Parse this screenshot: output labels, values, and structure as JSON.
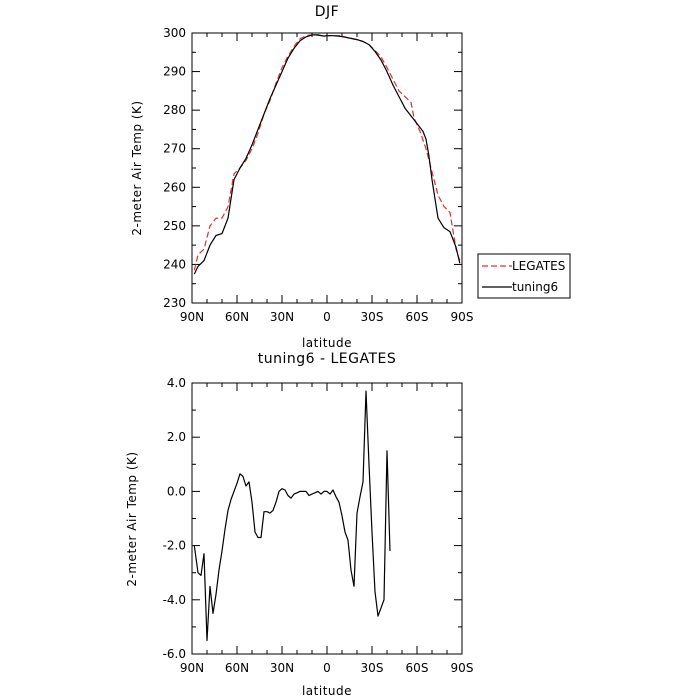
{
  "chart_data": [
    {
      "type": "line",
      "title": "DJF",
      "xlabel": "latitude",
      "ylabel": "2-meter Air Temp (K)",
      "xlim": [
        -90,
        90
      ],
      "ylim": [
        230,
        300
      ],
      "x_ticks": [
        -90,
        -60,
        -30,
        0,
        30,
        60,
        90
      ],
      "x_tick_labels": [
        "90N",
        "60N",
        "30N",
        "0",
        "30S",
        "60S",
        "90S"
      ],
      "y_ticks": [
        230,
        240,
        250,
        260,
        270,
        280,
        290,
        300
      ],
      "y_tick_labels": [
        "230",
        "240",
        "250",
        "260",
        "270",
        "280",
        "290",
        "300"
      ],
      "grid": false,
      "legend": {
        "placement": "outside-right",
        "entries": [
          {
            "label": "LEGATES",
            "color": "#e03030",
            "dash": "dashed"
          },
          {
            "label": "tuning6",
            "color": "#000000",
            "dash": "solid"
          }
        ]
      },
      "series": [
        {
          "name": "LEGATES",
          "color": "#e03030",
          "dash": "dashed",
          "points": [
            [
              -88.5,
              238.5
            ],
            [
              -86,
              242.5
            ],
            [
              -82,
              244
            ],
            [
              -78,
              250
            ],
            [
              -74,
              252
            ],
            [
              -70,
              252
            ],
            [
              -66,
              255
            ],
            [
              -62,
              263.5
            ],
            [
              -58,
              265
            ],
            [
              -54,
              267
            ],
            [
              -50,
              270
            ],
            [
              -46,
              274
            ],
            [
              -42,
              279
            ],
            [
              -38,
              282.5
            ],
            [
              -34,
              287
            ],
            [
              -30,
              291
            ],
            [
              -26,
              294
            ],
            [
              -22,
              296.5
            ],
            [
              -18,
              298.5
            ],
            [
              -14,
              299.3
            ],
            [
              -10,
              299.5
            ],
            [
              -6,
              299.4
            ],
            [
              -2,
              299.2
            ],
            [
              0,
              299.3
            ],
            [
              4,
              299.3
            ],
            [
              8,
              299.3
            ],
            [
              12,
              299
            ],
            [
              16,
              298.6
            ],
            [
              20,
              298.3
            ],
            [
              24,
              297.8
            ],
            [
              28,
              297
            ],
            [
              32,
              295.5
            ],
            [
              36,
              293.8
            ],
            [
              40,
              291
            ],
            [
              44,
              288
            ],
            [
              48,
              285
            ],
            [
              52,
              283.5
            ],
            [
              56,
              282
            ],
            [
              58,
              278
            ],
            [
              62,
              274.5
            ],
            [
              66,
              270
            ],
            [
              70,
              264
            ],
            [
              74,
              258
            ],
            [
              78,
              255
            ],
            [
              82,
              253.5
            ],
            [
              86,
              244
            ],
            [
              88.5,
              241
            ]
          ]
        },
        {
          "name": "tuning6",
          "color": "#000000",
          "dash": "solid",
          "points": [
            [
              -88.5,
              237.5
            ],
            [
              -86,
              239.5
            ],
            [
              -82,
              241
            ],
            [
              -78,
              245
            ],
            [
              -74,
              247.5
            ],
            [
              -70,
              248
            ],
            [
              -66,
              252
            ],
            [
              -62,
              262
            ],
            [
              -58,
              265
            ],
            [
              -54,
              267.5
            ],
            [
              -50,
              271
            ],
            [
              -46,
              275
            ],
            [
              -42,
              279
            ],
            [
              -38,
              283
            ],
            [
              -34,
              286.5
            ],
            [
              -30,
              290
            ],
            [
              -26,
              293.5
            ],
            [
              -22,
              296
            ],
            [
              -18,
              298
            ],
            [
              -14,
              299
            ],
            [
              -10,
              299.5
            ],
            [
              -6,
              299.5
            ],
            [
              -2,
              299.2
            ],
            [
              0,
              299.3
            ],
            [
              4,
              299.3
            ],
            [
              8,
              299.2
            ],
            [
              12,
              298.9
            ],
            [
              16,
              298.6
            ],
            [
              20,
              298.3
            ],
            [
              24,
              297.8
            ],
            [
              28,
              297
            ],
            [
              32,
              295.2
            ],
            [
              36,
              293
            ],
            [
              40,
              290
            ],
            [
              44,
              286.5
            ],
            [
              48,
              283.5
            ],
            [
              52,
              280.5
            ],
            [
              56,
              278.5
            ],
            [
              60,
              276.5
            ],
            [
              64,
              274.5
            ],
            [
              66,
              272.5
            ],
            [
              68,
              268
            ],
            [
              70,
              262
            ],
            [
              74,
              252
            ],
            [
              78,
              249.5
            ],
            [
              82,
              248.5
            ],
            [
              86,
              244.5
            ],
            [
              88.5,
              240.3
            ]
          ]
        }
      ]
    },
    {
      "type": "line",
      "title": "tuning6 - LEGATES",
      "xlabel": "latitude",
      "ylabel": "2-meter Air Temp (K)",
      "xlim": [
        -90,
        90
      ],
      "ylim": [
        -6.0,
        4.0
      ],
      "x_ticks": [
        -90,
        -60,
        -30,
        0,
        30,
        60,
        90
      ],
      "x_tick_labels": [
        "90N",
        "60N",
        "30N",
        "0",
        "30S",
        "60S",
        "90S"
      ],
      "y_ticks": [
        -6,
        -4,
        -2,
        0,
        2,
        4
      ],
      "y_tick_labels": [
        "-6.0",
        "-4.0",
        "-2.0",
        "0.0",
        "2.0",
        "4.0"
      ],
      "grid": false,
      "series": [
        {
          "color": "#000000",
          "dash": "solid",
          "points": [
            [
              -88.5,
              -2.0
            ],
            [
              -86,
              -3.0
            ],
            [
              -84,
              -3.1
            ],
            [
              -82,
              -2.3
            ],
            [
              -80,
              -5.5
            ],
            [
              -78,
              -3.5
            ],
            [
              -76,
              -4.5
            ],
            [
              -74,
              -3.8
            ],
            [
              -72,
              -2.9
            ],
            [
              -70,
              -2.2
            ],
            [
              -68,
              -1.4
            ],
            [
              -66,
              -0.7
            ],
            [
              -64,
              -0.3
            ],
            [
              -62,
              0.0
            ],
            [
              -60,
              0.3
            ],
            [
              -58,
              0.65
            ],
            [
              -56,
              0.55
            ],
            [
              -54,
              0.2
            ],
            [
              -52,
              0.35
            ],
            [
              -50,
              -0.4
            ],
            [
              -48,
              -1.5
            ],
            [
              -46,
              -1.7
            ],
            [
              -44,
              -1.7
            ],
            [
              -42,
              -0.75
            ],
            [
              -40,
              -0.75
            ],
            [
              -38,
              -0.8
            ],
            [
              -36,
              -0.7
            ],
            [
              -34,
              -0.4
            ],
            [
              -32,
              0.0
            ],
            [
              -30,
              0.1
            ],
            [
              -28,
              0.05
            ],
            [
              -26,
              -0.15
            ],
            [
              -24,
              -0.25
            ],
            [
              -22,
              -0.1
            ],
            [
              -20,
              -0.05
            ],
            [
              -18,
              0.0
            ],
            [
              -16,
              0.0
            ],
            [
              -14,
              0.0
            ],
            [
              -12,
              -0.15
            ],
            [
              -10,
              -0.1
            ],
            [
              -8,
              -0.05
            ],
            [
              -6,
              0.0
            ],
            [
              -4,
              -0.1
            ],
            [
              -2,
              0.0
            ],
            [
              0,
              0.0
            ],
            [
              2,
              -0.1
            ],
            [
              4,
              0.05
            ],
            [
              6,
              -0.2
            ],
            [
              8,
              -0.4
            ],
            [
              10,
              -0.9
            ],
            [
              12,
              -1.5
            ],
            [
              14,
              -1.8
            ],
            [
              16,
              -2.9
            ],
            [
              18,
              -3.5
            ],
            [
              20,
              -0.8
            ],
            [
              22,
              -0.2
            ],
            [
              24,
              0.35
            ],
            [
              26,
              3.7
            ],
            [
              28,
              1.0
            ],
            [
              30,
              -1.5
            ],
            [
              32,
              -3.7
            ],
            [
              34,
              -4.6
            ],
            [
              36,
              -4.3
            ],
            [
              38,
              -4.0
            ],
            [
              40,
              1.5
            ],
            [
              42,
              -2.2
            ]
          ]
        }
      ]
    }
  ]
}
